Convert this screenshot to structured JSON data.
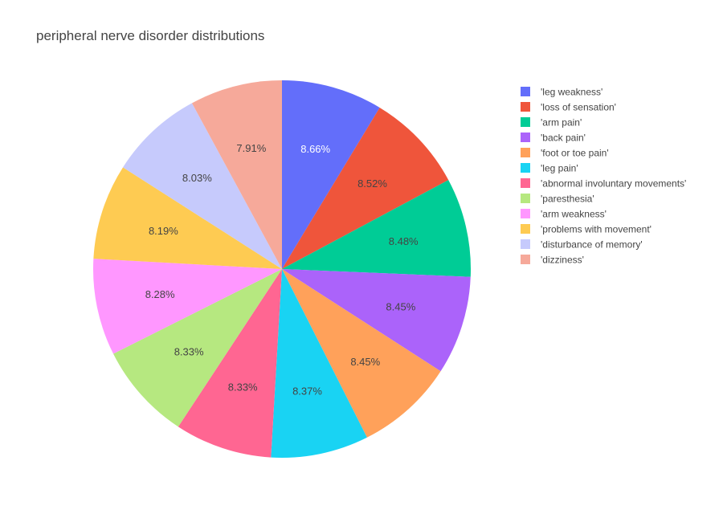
{
  "chart_data": {
    "type": "pie",
    "title": "peripheral nerve disorder distributions",
    "legend_position": "right",
    "slices": [
      {
        "label": "'leg weakness'",
        "value": 8.66,
        "value_label": "8.66%",
        "color": "#636efa",
        "label_color": "#ffffff"
      },
      {
        "label": "'loss of sensation'",
        "value": 8.52,
        "value_label": "8.52%",
        "color": "#ef553b",
        "label_color": "#444444"
      },
      {
        "label": "'arm pain'",
        "value": 8.48,
        "value_label": "8.48%",
        "color": "#00cc96",
        "label_color": "#444444"
      },
      {
        "label": "'back pain'",
        "value": 8.45,
        "value_label": "8.45%",
        "color": "#ab63fa",
        "label_color": "#444444"
      },
      {
        "label": "'foot or toe pain'",
        "value": 8.45,
        "value_label": "8.45%",
        "color": "#ffa15a",
        "label_color": "#444444"
      },
      {
        "label": "'leg pain'",
        "value": 8.37,
        "value_label": "8.37%",
        "color": "#19d3f3",
        "label_color": "#444444"
      },
      {
        "label": "'abnormal involuntary movements'",
        "value": 8.33,
        "value_label": "8.33%",
        "color": "#ff6692",
        "label_color": "#444444"
      },
      {
        "label": "'paresthesia'",
        "value": 8.33,
        "value_label": "8.33%",
        "color": "#b6e880",
        "label_color": "#444444"
      },
      {
        "label": "'arm weakness'",
        "value": 8.28,
        "value_label": "8.28%",
        "color": "#ff97ff",
        "label_color": "#444444"
      },
      {
        "label": "'problems with movement'",
        "value": 8.19,
        "value_label": "8.19%",
        "color": "#fecb52",
        "label_color": "#444444"
      },
      {
        "label": "'disturbance of memory'",
        "value": 8.03,
        "value_label": "8.03%",
        "color": "#c6cafc",
        "label_color": "#444444"
      },
      {
        "label": "'dizziness'",
        "value": 7.91,
        "value_label": "7.91%",
        "color": "#f6a99a",
        "label_color": "#444444"
      }
    ]
  }
}
